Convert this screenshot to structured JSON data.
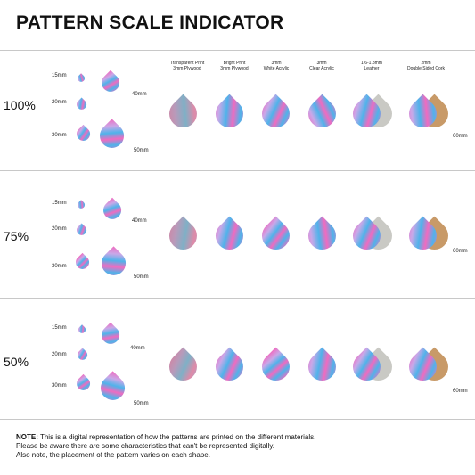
{
  "title": "PATTERN SCALE INDICATOR",
  "materials": [
    {
      "line1": "Transparent Print",
      "line2": "3mm Plywood"
    },
    {
      "line1": "Bright Print",
      "line2": "3mm Plywood"
    },
    {
      "line1": "3mm",
      "line2": "White Acrylic"
    },
    {
      "line1": "3mm",
      "line2": "Clear Acrylic"
    },
    {
      "line1": "1.6-1.8mm",
      "line2": "Leather"
    },
    {
      "line1": "2mm",
      "line2": "Double Sided Cork"
    }
  ],
  "sections": [
    {
      "scale": "100%",
      "sizes": [
        "15mm",
        "20mm",
        "30mm",
        "40mm",
        "50mm"
      ],
      "sample_size": "60mm"
    },
    {
      "scale": "75%",
      "sizes": [
        "15mm",
        "20mm",
        "30mm",
        "40mm",
        "50mm"
      ],
      "sample_size": "60mm"
    },
    {
      "scale": "50%",
      "sizes": [
        "15mm",
        "20mm",
        "30mm",
        "40mm",
        "50mm"
      ],
      "sample_size": "60mm"
    }
  ],
  "note": {
    "label": "NOTE:",
    "line1": " This is a digital representation of how the patterns are printed on the different materials.",
    "line2": "Please be aware there are some characteristics that can't be represented digitally.",
    "line3": "Also note, the placement of the pattern varies on each shape."
  },
  "colors": {
    "pink": "#f06bc0",
    "blue": "#4fb3ea",
    "lavender": "#c9a8e8",
    "leather": "#c9c9c4",
    "cork": "#c89a68"
  }
}
